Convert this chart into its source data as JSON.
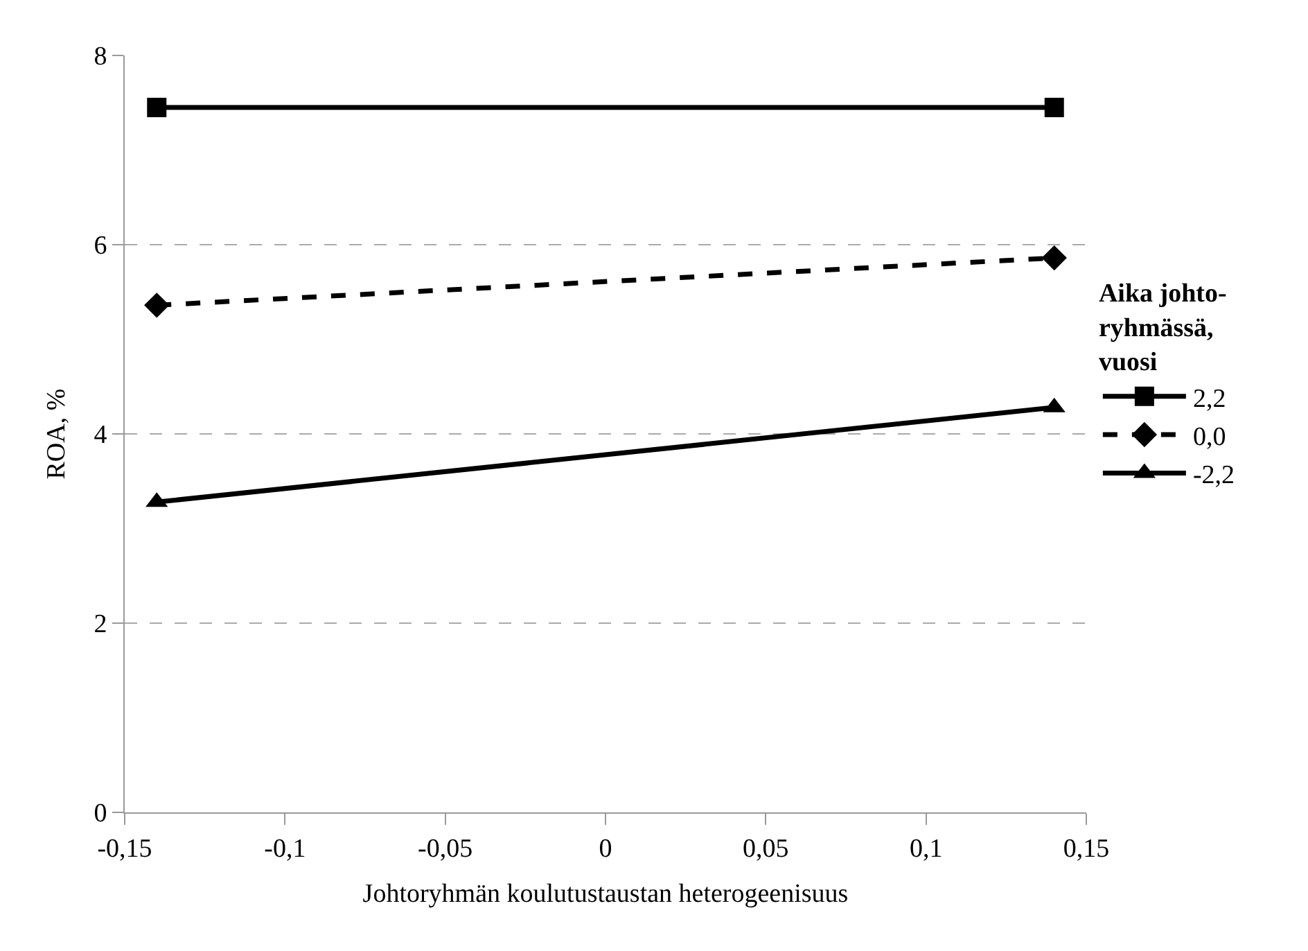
{
  "chart_data": {
    "type": "line",
    "xlabel": "Johtoryhmän koulutustaustan heterogeenisuus",
    "ylabel": "ROA, %",
    "legend_title": "Aika johto-ryhmässä, vuosi",
    "x": [
      -0.14,
      0.14
    ],
    "series": [
      {
        "name": "2,2",
        "color": "#000000",
        "values": [
          7.45,
          7.45
        ],
        "marker": "square",
        "line_style": "solid"
      },
      {
        "name": "0,0",
        "color": "#000000",
        "values": [
          5.36,
          5.86
        ],
        "marker": "diamond",
        "line_style": "dashed"
      },
      {
        "name": "-2,2",
        "color": "#000000",
        "values": [
          3.28,
          4.28
        ],
        "marker": "triangle",
        "line_style": "solid"
      }
    ],
    "xlim": [
      -0.15,
      0.15
    ],
    "xticks": [
      {
        "value": -0.15,
        "label": "-0,15"
      },
      {
        "value": -0.1,
        "label": "-0,1"
      },
      {
        "value": -0.05,
        "label": "-0,05"
      },
      0,
      {
        "value": 0.05,
        "label": "0,05"
      },
      {
        "value": 0.1,
        "label": "0,1"
      },
      {
        "value": 0.15,
        "label": "0,15"
      }
    ],
    "ylim": [
      0,
      8
    ],
    "yticks": [
      0,
      2,
      4,
      6,
      8
    ],
    "grid": "y",
    "legend": "right"
  }
}
